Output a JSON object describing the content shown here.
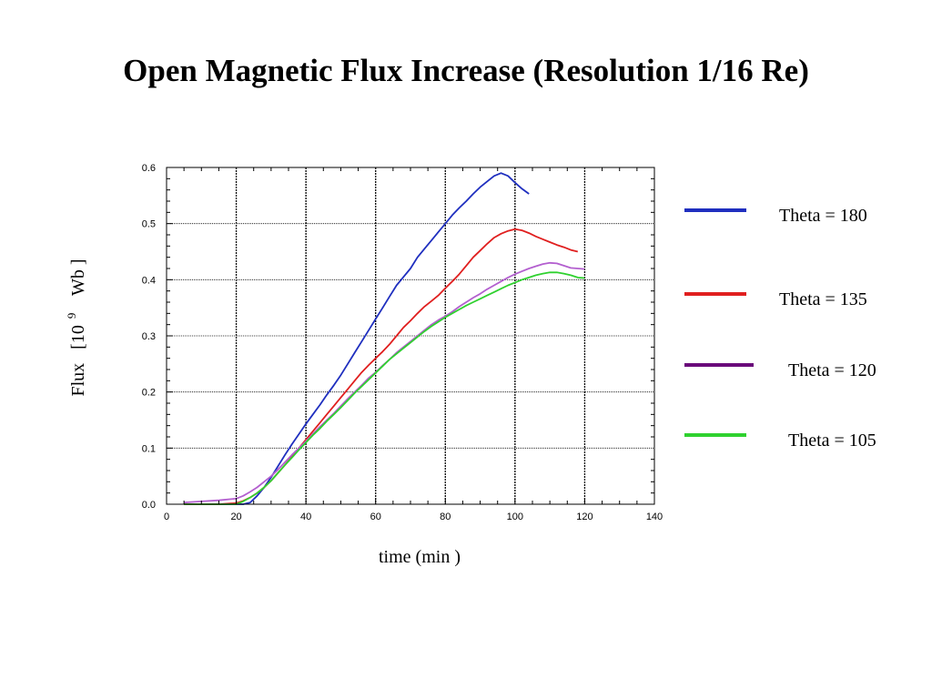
{
  "chart_data": {
    "type": "line",
    "title": "Open Magnetic Flux Increase (Resolution 1/16 Re)",
    "xlabel": "time (min )",
    "ylabel_parts": [
      "Flux",
      "[10",
      "9",
      "Wb ]"
    ],
    "xlim": [
      0,
      140
    ],
    "ylim": [
      0,
      0.6
    ],
    "xticks": [
      "0",
      "20",
      "40",
      "60",
      "80",
      "100",
      "120",
      "140"
    ],
    "yticks": [
      "0.0",
      "0.1",
      "0.2",
      "0.3",
      "0.4",
      "0.5",
      "0.6"
    ],
    "grid": true,
    "legend_position": "right",
    "series": [
      {
        "name": "Theta = 180",
        "color": "#1f2fbf",
        "x": [
          5,
          10,
          15,
          20,
          22,
          24,
          26,
          28,
          30,
          32,
          34,
          36,
          38,
          40,
          42,
          44,
          46,
          48,
          50,
          52,
          54,
          56,
          58,
          60,
          62,
          64,
          66,
          68,
          70,
          72,
          74,
          76,
          78,
          80,
          82,
          84,
          86,
          88,
          90,
          92,
          94,
          96,
          98,
          100,
          102,
          104
        ],
        "y": [
          0.0,
          0.0,
          0.0,
          0.0,
          0.0,
          0.003,
          0.015,
          0.03,
          0.048,
          0.068,
          0.088,
          0.107,
          0.125,
          0.143,
          0.16,
          0.177,
          0.195,
          0.212,
          0.23,
          0.25,
          0.27,
          0.29,
          0.31,
          0.33,
          0.35,
          0.37,
          0.39,
          0.405,
          0.42,
          0.44,
          0.455,
          0.47,
          0.485,
          0.5,
          0.515,
          0.528,
          0.54,
          0.553,
          0.565,
          0.575,
          0.585,
          0.59,
          0.585,
          0.573,
          0.562,
          0.553
        ]
      },
      {
        "name": "Theta = 135",
        "color": "#e01f1f",
        "x": [
          5,
          10,
          15,
          20,
          22,
          24,
          26,
          28,
          30,
          32,
          34,
          36,
          38,
          40,
          42,
          44,
          46,
          48,
          50,
          52,
          54,
          56,
          58,
          60,
          62,
          64,
          66,
          68,
          70,
          72,
          74,
          76,
          78,
          80,
          82,
          84,
          86,
          88,
          90,
          92,
          94,
          96,
          98,
          100,
          102,
          104,
          106,
          108,
          110,
          112,
          114,
          116,
          118
        ],
        "y": [
          0.0,
          0.0,
          0.0,
          0.002,
          0.006,
          0.012,
          0.02,
          0.03,
          0.042,
          0.056,
          0.07,
          0.085,
          0.1,
          0.115,
          0.13,
          0.145,
          0.16,
          0.175,
          0.19,
          0.205,
          0.22,
          0.235,
          0.248,
          0.26,
          0.272,
          0.285,
          0.3,
          0.315,
          0.327,
          0.34,
          0.352,
          0.362,
          0.372,
          0.385,
          0.397,
          0.41,
          0.425,
          0.44,
          0.452,
          0.464,
          0.475,
          0.482,
          0.487,
          0.49,
          0.488,
          0.483,
          0.477,
          0.472,
          0.467,
          0.462,
          0.458,
          0.453,
          0.45
        ]
      },
      {
        "name": "Theta = 120",
        "color": "#b35fcf",
        "x": [
          5,
          10,
          15,
          20,
          22,
          24,
          26,
          28,
          30,
          32,
          34,
          36,
          38,
          40,
          42,
          44,
          46,
          48,
          50,
          52,
          54,
          56,
          58,
          60,
          62,
          64,
          66,
          68,
          70,
          72,
          74,
          76,
          78,
          80,
          82,
          84,
          86,
          88,
          90,
          92,
          94,
          96,
          98,
          100,
          102,
          104,
          106,
          108,
          110,
          112,
          114,
          116,
          118,
          120
        ],
        "y": [
          0.003,
          0.005,
          0.007,
          0.01,
          0.015,
          0.022,
          0.03,
          0.04,
          0.05,
          0.062,
          0.075,
          0.088,
          0.1,
          0.112,
          0.125,
          0.138,
          0.15,
          0.162,
          0.175,
          0.188,
          0.2,
          0.212,
          0.225,
          0.235,
          0.247,
          0.258,
          0.27,
          0.28,
          0.29,
          0.3,
          0.31,
          0.32,
          0.328,
          0.335,
          0.343,
          0.352,
          0.36,
          0.368,
          0.375,
          0.383,
          0.39,
          0.397,
          0.404,
          0.41,
          0.415,
          0.42,
          0.424,
          0.428,
          0.43,
          0.429,
          0.425,
          0.421,
          0.42,
          0.419
        ]
      },
      {
        "name": "Theta = 105",
        "color": "#2fd12f",
        "x": [
          5,
          10,
          15,
          20,
          22,
          24,
          26,
          28,
          30,
          32,
          34,
          36,
          38,
          40,
          42,
          44,
          46,
          48,
          50,
          52,
          54,
          56,
          58,
          60,
          62,
          64,
          66,
          68,
          70,
          72,
          74,
          76,
          78,
          80,
          82,
          84,
          86,
          88,
          90,
          92,
          94,
          96,
          98,
          100,
          102,
          104,
          106,
          108,
          110,
          112,
          114,
          116,
          118,
          120
        ],
        "y": [
          0.0,
          0.0,
          0.0,
          0.0,
          0.005,
          0.012,
          0.02,
          0.03,
          0.042,
          0.056,
          0.07,
          0.083,
          0.097,
          0.11,
          0.123,
          0.135,
          0.148,
          0.16,
          0.172,
          0.185,
          0.198,
          0.21,
          0.222,
          0.234,
          0.246,
          0.258,
          0.268,
          0.278,
          0.288,
          0.298,
          0.308,
          0.317,
          0.325,
          0.333,
          0.34,
          0.347,
          0.354,
          0.36,
          0.366,
          0.372,
          0.378,
          0.384,
          0.39,
          0.395,
          0.4,
          0.404,
          0.408,
          0.411,
          0.413,
          0.413,
          0.411,
          0.408,
          0.404,
          0.403
        ]
      }
    ]
  }
}
